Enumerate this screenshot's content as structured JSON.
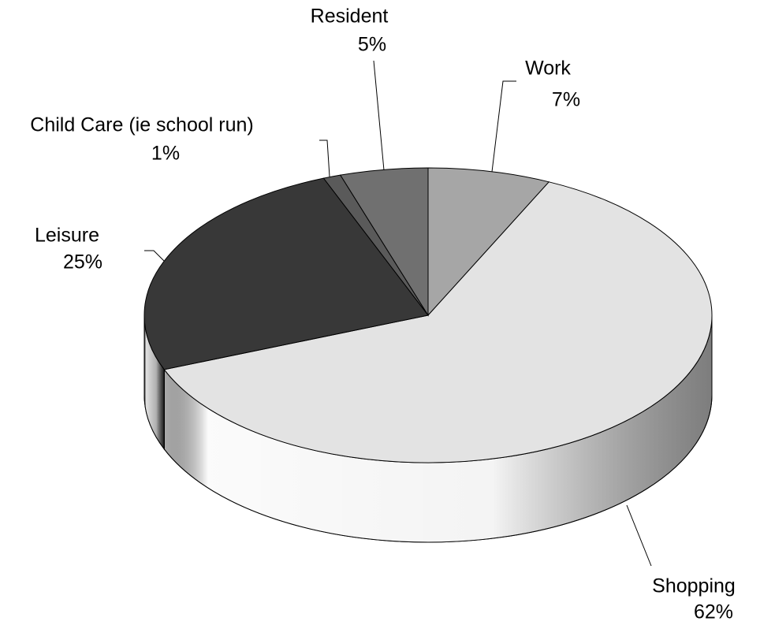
{
  "chart_data": {
    "type": "pie3d",
    "categories": [
      "Work",
      "Shopping",
      "Leisure",
      "Child Care (ie school run)",
      "Resident"
    ],
    "values": [
      7,
      62,
      25,
      1,
      5
    ],
    "value_labels": [
      "7%",
      "62%",
      "25%",
      "1%",
      "5%"
    ],
    "colors": [
      "#a6a6a6",
      "#e3e3e3",
      "#383838",
      "#5a5a5a",
      "#707070"
    ]
  }
}
